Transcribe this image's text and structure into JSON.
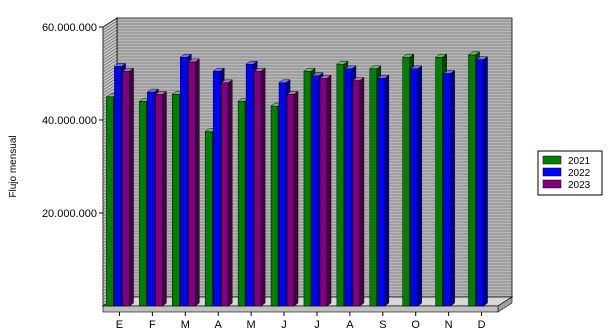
{
  "chart_data": {
    "type": "bar",
    "title": "",
    "xlabel": "",
    "ylabel": "Flujo mensual",
    "ylim": [
      0,
      60000000
    ],
    "yticks": [
      {
        "value": 20000000,
        "label": "20.000.000"
      },
      {
        "value": 40000000,
        "label": "40.000.000"
      },
      {
        "value": 60000000,
        "label": "60.000.000"
      }
    ],
    "categories": [
      "E",
      "F",
      "M",
      "A",
      "M",
      "J",
      "J",
      "A",
      "S",
      "O",
      "N",
      "D"
    ],
    "series": [
      {
        "name": "2021",
        "color": "#008000",
        "values": [
          45000000,
          44000000,
          45500000,
          37500000,
          44000000,
          43000000,
          50500000,
          52000000,
          51000000,
          53500000,
          53500000,
          54000000
        ]
      },
      {
        "name": "2022",
        "color": "#0000ff",
        "values": [
          51500000,
          46000000,
          53500000,
          50500000,
          52000000,
          48000000,
          49500000,
          51000000,
          49000000,
          51000000,
          50000000,
          53000000
        ]
      },
      {
        "name": "2023",
        "color": "#800080",
        "values": [
          50500000,
          45500000,
          52500000,
          48000000,
          50500000,
          45500000,
          49000000,
          48500000,
          null,
          null,
          null,
          null
        ]
      }
    ],
    "legend": {
      "position": "right"
    },
    "grid": true,
    "style": "3d"
  }
}
